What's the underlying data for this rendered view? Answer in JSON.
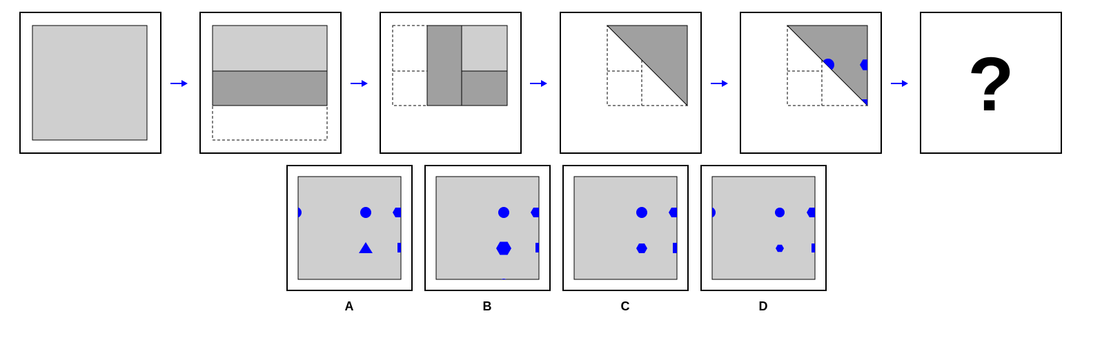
{
  "puzzle": {
    "question_mark": "?",
    "options": [
      {
        "label": "A"
      },
      {
        "label": "B"
      },
      {
        "label": "C"
      },
      {
        "label": "D"
      }
    ]
  },
  "colors": {
    "paper": "#cfcfcf",
    "fold": "#a0a0a0",
    "hole": "#0000ff",
    "arrow": "#0000ff"
  }
}
